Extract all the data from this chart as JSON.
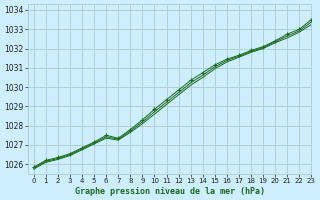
{
  "title": "Graphe pression niveau de la mer (hPa)",
  "bg_color": "#cceeff",
  "grid_color": "#aacccc",
  "line_color": "#1a6b1a",
  "marker_color": "#1a6b1a",
  "xlim": [
    -0.5,
    23
  ],
  "ylim": [
    1025.5,
    1034.3
  ],
  "xticks": [
    0,
    1,
    2,
    3,
    4,
    5,
    6,
    7,
    8,
    9,
    10,
    11,
    12,
    13,
    14,
    15,
    16,
    17,
    18,
    19,
    20,
    21,
    22,
    23
  ],
  "yticks": [
    1026,
    1027,
    1028,
    1029,
    1030,
    1031,
    1032,
    1033,
    1034
  ],
  "series1_x": [
    0,
    1,
    2,
    3,
    4,
    5,
    6,
    7,
    8,
    9,
    10,
    11,
    12,
    13,
    14,
    15,
    16,
    17,
    18,
    19,
    20,
    21,
    22,
    23
  ],
  "series1_y": [
    1025.85,
    1026.2,
    1026.35,
    1026.55,
    1026.85,
    1027.15,
    1027.5,
    1027.35,
    1027.8,
    1028.3,
    1028.85,
    1029.35,
    1029.85,
    1030.35,
    1030.75,
    1031.15,
    1031.45,
    1031.65,
    1031.9,
    1032.1,
    1032.4,
    1032.75,
    1033.0,
    1033.5
  ],
  "series2_x": [
    0,
    1,
    2,
    3,
    4,
    5,
    6,
    7,
    8,
    9,
    10,
    11,
    12,
    13,
    14,
    15,
    16,
    17,
    18,
    19,
    20,
    21,
    22,
    23
  ],
  "series2_y": [
    1025.75,
    1026.1,
    1026.25,
    1026.45,
    1026.75,
    1027.05,
    1027.35,
    1027.25,
    1027.65,
    1028.1,
    1028.6,
    1029.1,
    1029.6,
    1030.1,
    1030.5,
    1030.95,
    1031.3,
    1031.55,
    1031.8,
    1032.0,
    1032.3,
    1032.55,
    1032.85,
    1033.25
  ],
  "series3_x": [
    0,
    1,
    2,
    3,
    4,
    5,
    6,
    7,
    8,
    9,
    10,
    11,
    12,
    13,
    14,
    15,
    16,
    17,
    18,
    19,
    20,
    21,
    22,
    23
  ],
  "series3_y": [
    1025.8,
    1026.15,
    1026.3,
    1026.5,
    1026.8,
    1027.1,
    1027.42,
    1027.3,
    1027.72,
    1028.2,
    1028.72,
    1029.22,
    1029.72,
    1030.22,
    1030.62,
    1031.05,
    1031.38,
    1031.6,
    1031.85,
    1032.05,
    1032.35,
    1032.65,
    1032.92,
    1033.38
  ]
}
